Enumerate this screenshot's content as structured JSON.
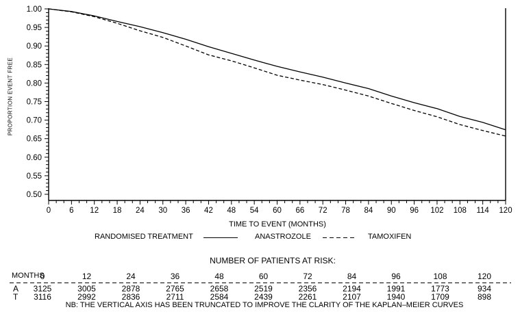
{
  "chart_data": {
    "type": "line",
    "title": "",
    "xlabel": "TIME TO EVENT (MONTHS)",
    "ylabel": "PROPORTION EVENT FREE",
    "xlim": [
      0,
      120
    ],
    "ylim": [
      0.5,
      1.0
    ],
    "x_major_tick_step": 6,
    "x_minor_tick_step": 2,
    "y_major_tick_step": 0.05,
    "y_minor_tick_step": 0.01,
    "grid": false,
    "legend_position": "bottom",
    "legend_title": "RANDOMISED TREATMENT",
    "color": "#000000",
    "x": [
      0,
      6,
      12,
      18,
      24,
      30,
      36,
      42,
      48,
      54,
      60,
      66,
      72,
      78,
      84,
      90,
      96,
      102,
      108,
      114,
      120
    ],
    "series": [
      {
        "name": "ANASTROZOLE",
        "line_style": "solid",
        "color": "#000000",
        "values": [
          1.0,
          0.993,
          0.981,
          0.966,
          0.952,
          0.936,
          0.918,
          0.898,
          0.88,
          0.862,
          0.845,
          0.83,
          0.816,
          0.8,
          0.785,
          0.765,
          0.747,
          0.731,
          0.71,
          0.694,
          0.674
        ]
      },
      {
        "name": "TAMOXIFEN",
        "line_style": "dashed",
        "color": "#000000",
        "values": [
          1.0,
          0.992,
          0.979,
          0.961,
          0.941,
          0.923,
          0.9,
          0.876,
          0.86,
          0.841,
          0.821,
          0.808,
          0.796,
          0.781,
          0.765,
          0.745,
          0.726,
          0.709,
          0.688,
          0.672,
          0.657
        ]
      }
    ]
  },
  "risk_table": {
    "title": "NUMBER OF PATIENTS AT RISK:",
    "months_label": "MONTHS",
    "months": [
      0,
      12,
      24,
      36,
      48,
      60,
      72,
      84,
      96,
      108,
      120
    ],
    "rows": [
      {
        "label": "A",
        "values": [
          3125,
          3005,
          2878,
          2765,
          2658,
          2519,
          2356,
          2194,
          1991,
          1773,
          934
        ]
      },
      {
        "label": "T",
        "values": [
          3116,
          2992,
          2836,
          2711,
          2584,
          2439,
          2261,
          2107,
          1940,
          1709,
          898
        ]
      }
    ]
  },
  "note": "NB:  THE VERTICAL AXIS HAS BEEN TRUNCATED TO IMPROVE THE CLARITY OF THE KAPLAN–MEIER CURVES",
  "colors": {
    "line": "#000000",
    "text": "#000000",
    "background": "#ffffff"
  }
}
